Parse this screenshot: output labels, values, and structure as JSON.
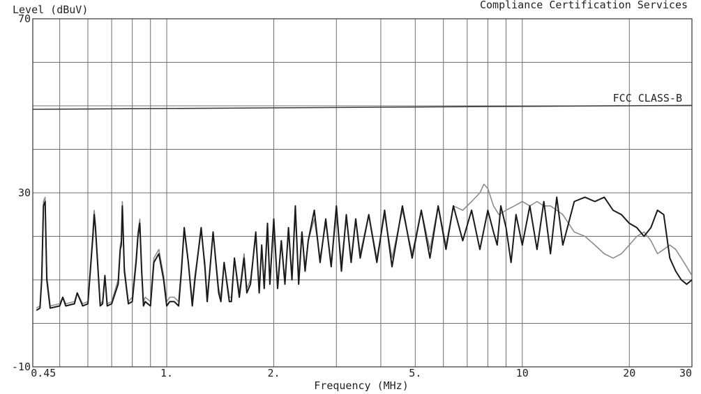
{
  "chart_data": {
    "type": "line",
    "title": "Compliance Certification Services",
    "ylabel": "Level (dBuV)",
    "xlabel": "Frequency (MHz)",
    "x_scale": "log",
    "xlim": [
      0.42,
      30
    ],
    "ylim": [
      -10,
      70
    ],
    "y_ticks": [
      {
        "value": 70,
        "label": "70"
      },
      {
        "value": 30,
        "label": "30"
      },
      {
        "value": -10,
        "label": "-10"
      }
    ],
    "x_ticks": [
      {
        "value": 0.45,
        "label": "0.45"
      },
      {
        "value": 1,
        "label": "1."
      },
      {
        "value": 2,
        "label": "2."
      },
      {
        "value": 5,
        "label": "5."
      },
      {
        "value": 10,
        "label": "10"
      },
      {
        "value": 20,
        "label": "20"
      },
      {
        "value": 30,
        "label": "30"
      }
    ],
    "limit_line": {
      "label": "FCC CLASS-B",
      "x": [
        0.42,
        30
      ],
      "y": [
        49.2,
        50.1
      ]
    },
    "grid": true,
    "colors": {
      "series_a": "#1a1a1a",
      "series_b": "#8c8c8c",
      "limit": "#3a3a3a",
      "grid": "#6f6f6f"
    },
    "series": [
      {
        "values_note": "",
        "x": [
          0.43,
          0.44,
          0.445,
          0.45,
          0.455,
          0.46,
          0.47,
          0.5,
          0.51,
          0.52,
          0.55,
          0.56,
          0.58,
          0.6,
          0.62,
          0.625,
          0.63,
          0.65,
          0.66,
          0.67,
          0.68,
          0.7,
          0.73,
          0.74,
          0.745,
          0.75,
          0.76,
          0.78,
          0.8,
          0.82,
          0.83,
          0.84,
          0.85,
          0.86,
          0.87,
          0.9,
          0.92,
          0.95,
          0.98,
          1.0,
          1.02,
          1.05,
          1.08,
          1.1,
          1.12,
          1.15,
          1.18,
          1.2,
          1.25,
          1.28,
          1.3,
          1.35,
          1.4,
          1.42,
          1.45,
          1.5,
          1.52,
          1.55,
          1.6,
          1.65,
          1.68,
          1.72,
          1.78,
          1.82,
          1.85,
          1.88,
          1.92,
          1.95,
          2.0,
          2.05,
          2.1,
          2.15,
          2.2,
          2.25,
          2.3,
          2.35,
          2.4,
          2.45,
          2.5,
          2.6,
          2.7,
          2.8,
          2.9,
          3.0,
          3.1,
          3.2,
          3.3,
          3.4,
          3.5,
          3.7,
          3.9,
          4.1,
          4.3,
          4.6,
          4.9,
          5.2,
          5.5,
          5.8,
          6.1,
          6.4,
          6.8,
          7.2,
          7.6,
          8.0,
          8.3,
          8.5,
          8.7,
          9.0,
          9.3,
          9.6,
          10.0,
          10.5,
          11.0,
          11.5,
          12.0,
          12.5,
          13.0,
          14.0,
          15.0,
          16.0,
          17.0,
          18.0,
          19.0,
          20.0,
          21.0,
          22.0,
          23.0,
          24.0,
          25.0,
          26.0,
          27.0,
          28.0,
          29.0,
          30.0
        ],
        "values": [
          3,
          3.5,
          10,
          27,
          28,
          10,
          3.5,
          4,
          6,
          4,
          4.5,
          7,
          4,
          4.5,
          20,
          25,
          22,
          4,
          4.5,
          11,
          4,
          4.5,
          9,
          17,
          18,
          27,
          12,
          4.5,
          5,
          14,
          20,
          23,
          12,
          4,
          5,
          4,
          14,
          16,
          10,
          4,
          5,
          5,
          4,
          12,
          22,
          14,
          4,
          10,
          22,
          13,
          5,
          21,
          7,
          5,
          14,
          5,
          5,
          15,
          6,
          15,
          7,
          9,
          21,
          7,
          18,
          8,
          23,
          9,
          24,
          8,
          19,
          9,
          22,
          10,
          27,
          9,
          21,
          12,
          19,
          26,
          14,
          24,
          13,
          27,
          12,
          25,
          14,
          24,
          15,
          25,
          14,
          26,
          13,
          27,
          15,
          26,
          15,
          27,
          17,
          27,
          19,
          26,
          17,
          26,
          21,
          18,
          27,
          22,
          14,
          25,
          18,
          27,
          17,
          28,
          16,
          29,
          18,
          28,
          29,
          28,
          29,
          26,
          25,
          23,
          22,
          20,
          22,
          26,
          25,
          15,
          12,
          10,
          9,
          10
        ]
      },
      {
        "values_note": "",
        "x": [
          0.43,
          0.44,
          0.445,
          0.45,
          0.455,
          0.46,
          0.47,
          0.5,
          0.51,
          0.52,
          0.55,
          0.56,
          0.58,
          0.6,
          0.62,
          0.625,
          0.63,
          0.65,
          0.66,
          0.67,
          0.68,
          0.7,
          0.73,
          0.74,
          0.745,
          0.75,
          0.76,
          0.78,
          0.8,
          0.82,
          0.83,
          0.84,
          0.85,
          0.86,
          0.87,
          0.9,
          0.92,
          0.95,
          0.98,
          1.0,
          1.02,
          1.05,
          1.08,
          1.1,
          1.12,
          1.15,
          1.18,
          1.2,
          1.25,
          1.28,
          1.3,
          1.35,
          1.4,
          1.42,
          1.45,
          1.5,
          1.52,
          1.55,
          1.6,
          1.65,
          1.68,
          1.72,
          1.78,
          1.82,
          1.85,
          1.88,
          1.92,
          1.95,
          2.0,
          2.05,
          2.1,
          2.15,
          2.2,
          2.25,
          2.3,
          2.35,
          2.4,
          2.45,
          2.5,
          2.6,
          2.7,
          2.8,
          2.9,
          3.0,
          3.1,
          3.2,
          3.3,
          3.4,
          3.5,
          3.7,
          3.9,
          4.1,
          4.3,
          4.6,
          4.9,
          5.2,
          5.5,
          5.8,
          6.1,
          6.4,
          6.8,
          7.2,
          7.6,
          7.8,
          8.0,
          8.3,
          8.6,
          9.0,
          9.5,
          10.0,
          10.5,
          11.0,
          11.5,
          12.0,
          12.5,
          13.0,
          14.0,
          15.0,
          16.0,
          17.0,
          18.0,
          19.0,
          20.0,
          21.0,
          22.0,
          23.0,
          24.0,
          25.0,
          26.0,
          27.0,
          28.0,
          29.0,
          30.0
        ],
        "values": [
          3.5,
          4,
          11,
          28,
          29,
          11,
          4,
          4.5,
          6,
          4.5,
          5,
          7,
          4.5,
          5,
          21,
          26,
          23,
          4.5,
          5,
          11,
          4.5,
          5,
          10,
          18,
          19,
          28,
          13,
          5,
          6,
          15,
          21,
          24,
          13,
          5,
          6,
          5,
          15,
          17,
          11,
          5,
          6,
          6,
          5,
          13,
          21,
          14,
          5,
          11,
          21,
          14,
          6,
          21,
          8,
          6,
          14,
          6,
          6,
          15,
          7,
          16,
          8,
          10,
          20,
          8,
          17,
          9,
          21,
          10,
          22,
          9,
          19,
          10,
          21,
          11,
          25,
          10,
          21,
          13,
          19,
          24,
          15,
          23,
          14,
          25,
          14,
          24,
          15,
          24,
          16,
          25,
          15,
          25,
          15,
          26,
          16,
          26,
          17,
          27,
          18,
          27,
          26,
          28,
          30,
          32,
          31,
          27,
          25,
          26,
          27,
          28,
          27,
          28,
          27,
          27,
          26,
          25,
          21,
          20,
          18,
          16,
          15,
          16,
          18,
          20,
          21,
          19,
          16,
          17,
          18,
          17,
          15,
          13,
          11
        ]
      }
    ]
  }
}
